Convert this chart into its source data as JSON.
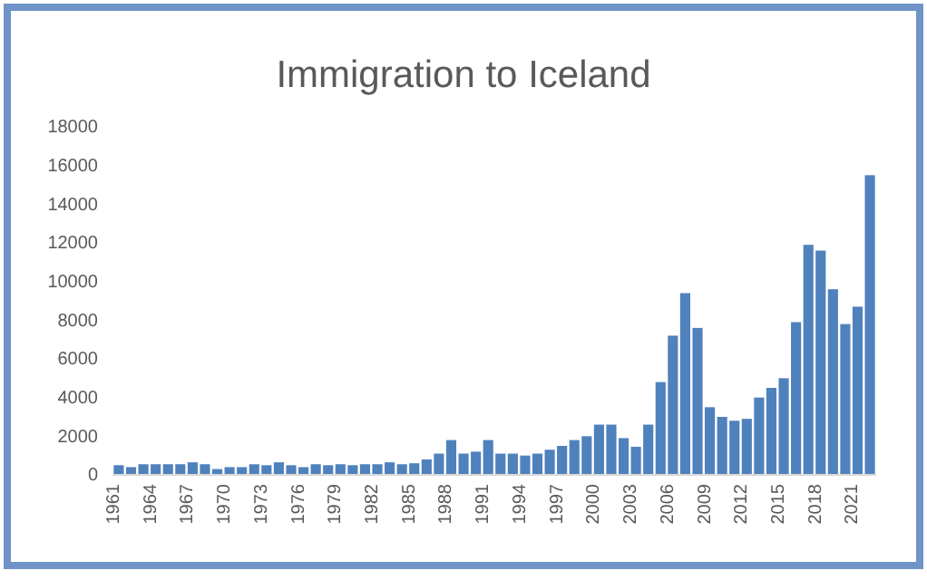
{
  "chart_data": {
    "type": "bar",
    "title": "Immigration to Iceland",
    "categories": [
      "1961",
      null,
      null,
      "1964",
      null,
      null,
      "1967",
      null,
      null,
      "1970",
      null,
      null,
      "1973",
      null,
      null,
      "1976",
      null,
      null,
      "1979",
      null,
      null,
      "1982",
      null,
      null,
      "1985",
      null,
      null,
      "1988",
      null,
      null,
      "1991",
      null,
      null,
      "1994",
      null,
      null,
      "1997",
      null,
      null,
      "2000",
      null,
      null,
      "2003",
      null,
      null,
      "2006",
      null,
      null,
      "2009",
      null,
      null,
      "2012",
      null,
      null,
      "2015",
      null,
      null,
      "2018",
      null,
      null,
      "2021",
      null
    ],
    "values": [
      500,
      400,
      550,
      550,
      550,
      550,
      650,
      550,
      300,
      400,
      400,
      550,
      500,
      650,
      500,
      400,
      550,
      500,
      550,
      500,
      550,
      550,
      650,
      550,
      600,
      800,
      1100,
      1800,
      1100,
      1200,
      1800,
      1100,
      1100,
      1000,
      1100,
      1300,
      1500,
      1800,
      2000,
      2600,
      2600,
      1900,
      1450,
      2600,
      4800,
      7200,
      9400,
      7600,
      3500,
      3000,
      2800,
      2900,
      4000,
      4500,
      5000,
      7900,
      11900,
      11600,
      9600,
      7800,
      8700,
      15500
    ],
    "color": "#4f81bd",
    "ylim": [
      0,
      18000
    ],
    "yticks": [
      0,
      2000,
      4000,
      6000,
      8000,
      10000,
      12000,
      14000,
      16000,
      18000
    ],
    "grid": false
  }
}
